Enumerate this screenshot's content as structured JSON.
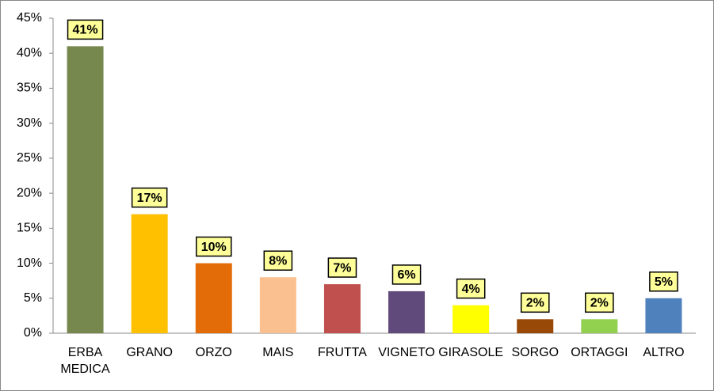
{
  "chart_data": {
    "type": "bar",
    "categories": [
      "ERBA MEDICA",
      "GRANO",
      "ORZO",
      "MAIS",
      "FRUTTA",
      "VIGNETO",
      "GIRASOLE",
      "SORGO",
      "ORTAGGI",
      "ALTRO"
    ],
    "values": [
      41,
      17,
      10,
      8,
      7,
      6,
      4,
      2,
      2,
      5
    ],
    "value_labels": [
      "41%",
      "17%",
      "10%",
      "8%",
      "7%",
      "6%",
      "4%",
      "2%",
      "2%",
      "5%"
    ],
    "colors": [
      "#77884f",
      "#ffc000",
      "#e36c09",
      "#fac090",
      "#c0504d",
      "#604a7b",
      "#ffff00",
      "#984807",
      "#92d050",
      "#4f81bd"
    ],
    "ylim": [
      0,
      45
    ],
    "yticks": [
      {
        "value": 0,
        "label": "0%"
      },
      {
        "value": 5,
        "label": "5%"
      },
      {
        "value": 10,
        "label": "10%"
      },
      {
        "value": 15,
        "label": "15%"
      },
      {
        "value": 20,
        "label": "20%"
      },
      {
        "value": 25,
        "label": "25%"
      },
      {
        "value": 30,
        "label": "30%"
      },
      {
        "value": 35,
        "label": "35%"
      },
      {
        "value": 40,
        "label": "40%"
      },
      {
        "value": 45,
        "label": "45%"
      }
    ],
    "grid": false
  }
}
